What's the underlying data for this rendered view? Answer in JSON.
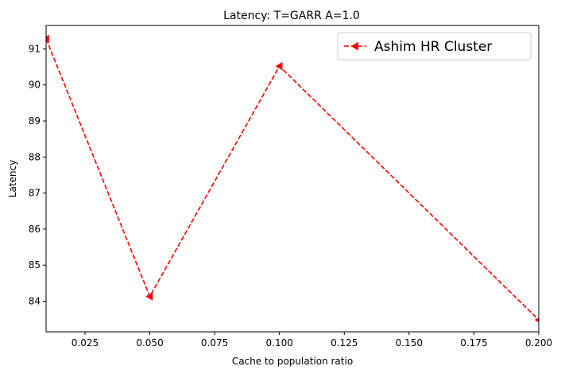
{
  "chart_data": {
    "type": "line",
    "title": "Latency: T=GARR A=1.0",
    "xlabel": "Cache to population ratio",
    "ylabel": "Latency",
    "xlim": [
      0.01,
      0.2
    ],
    "ylim": [
      83.15,
      91.65
    ],
    "x_ticks": [
      "0.025",
      "0.050",
      "0.075",
      "0.100",
      "0.125",
      "0.150",
      "0.175",
      "0.200"
    ],
    "y_ticks": [
      "84",
      "85",
      "86",
      "87",
      "88",
      "89",
      "90",
      "91"
    ],
    "grid": false,
    "legend_position": "top-right",
    "series": [
      {
        "name": "Ashim HR Cluster",
        "color": "#ff0000",
        "line_style": "dashed",
        "marker": "triangle-left",
        "x": [
          0.01,
          0.05,
          0.1,
          0.2
        ],
        "y": [
          91.28,
          84.13,
          90.52,
          83.48
        ]
      }
    ]
  }
}
